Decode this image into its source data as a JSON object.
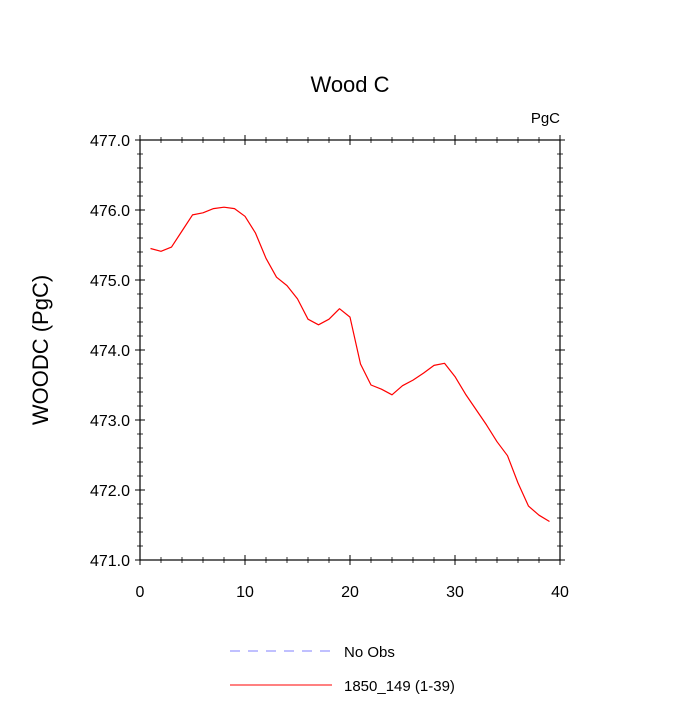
{
  "chart_data": {
    "type": "line",
    "title": "Wood C",
    "units_label": "PgC",
    "ylabel": "WOODC  (PgC)",
    "xlabel": "",
    "xlim": [
      0,
      40
    ],
    "ylim": [
      471.0,
      477.0
    ],
    "x_ticks": [
      "0",
      "10",
      "20",
      "30",
      "40"
    ],
    "y_ticks": [
      "471.0",
      "472.0",
      "473.0",
      "474.0",
      "475.0",
      "476.0",
      "477.0"
    ],
    "grid": false,
    "legend_position": "bottom-center",
    "legend": [
      {
        "label": "No Obs",
        "color": "#8080ff",
        "style": "dashed"
      },
      {
        "label": "1850_149 (1-39)",
        "color": "#ff0000",
        "style": "solid"
      }
    ],
    "series": [
      {
        "name": "1850_149 (1-39)",
        "color": "#ff0000",
        "x": [
          1,
          2,
          3,
          4,
          5,
          6,
          7,
          8,
          9,
          10,
          11,
          12,
          13,
          14,
          15,
          16,
          17,
          18,
          19,
          20,
          21,
          22,
          23,
          24,
          25,
          26,
          27,
          28,
          29,
          30,
          31,
          32,
          33,
          34,
          35,
          36,
          37,
          38,
          39
        ],
        "values": [
          475.45,
          475.41,
          475.47,
          475.7,
          475.93,
          475.96,
          476.02,
          476.04,
          476.02,
          475.91,
          475.67,
          475.31,
          475.04,
          474.92,
          474.73,
          474.44,
          474.36,
          474.44,
          474.59,
          474.47,
          473.8,
          473.5,
          473.44,
          473.36,
          473.49,
          473.57,
          473.67,
          473.78,
          473.81,
          473.62,
          473.37,
          473.15,
          472.93,
          472.69,
          472.49,
          472.1,
          471.77,
          471.64,
          471.55
        ]
      }
    ]
  }
}
